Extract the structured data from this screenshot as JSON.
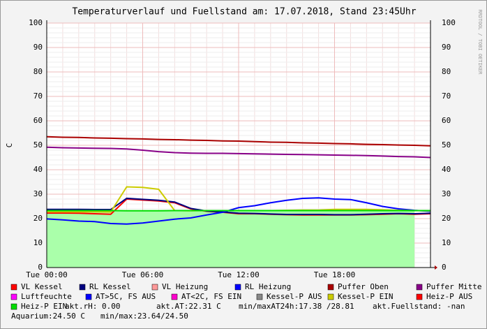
{
  "chart_data": {
    "type": "line",
    "title": "Temperaturverlauf und Fuellstand am: 17.07.2018, Stand 23:45Uhr",
    "y_label": "C",
    "side_text": "RRDTOOL / TOBI OETIKER",
    "x": [
      0,
      1,
      2,
      3,
      4,
      5,
      6,
      7,
      8,
      9,
      10,
      11,
      12,
      13,
      14,
      15,
      16,
      17,
      18,
      19,
      20,
      21,
      22,
      23,
      24
    ],
    "xlim": [
      0,
      24
    ],
    "xticks": [
      {
        "value": 0,
        "label": "Tue 00:00"
      },
      {
        "value": 6,
        "label": "Tue 06:00"
      },
      {
        "value": 12,
        "label": "Tue 12:00"
      },
      {
        "value": 18,
        "label": "Tue 18:00"
      }
    ],
    "ylim": [
      0,
      100
    ],
    "yticks": [
      0,
      10,
      20,
      30,
      40,
      50,
      60,
      70,
      80,
      90,
      100
    ],
    "grid": true,
    "fill_area": {
      "color": "#aaffaa",
      "values": [
        23,
        23,
        23,
        23,
        23,
        23,
        23,
        23,
        23,
        23,
        23,
        23,
        23,
        23,
        23,
        23,
        23,
        23,
        23,
        23,
        23,
        23,
        23,
        23,
        null
      ]
    },
    "series": [
      {
        "name": "VL Kessel",
        "color": "#ff0000",
        "values": [
          22.3,
          22.3,
          22.2,
          22.0,
          21.8,
          28.0,
          27.6,
          27.2,
          26.5,
          24.0,
          23.0,
          22.6,
          22.0,
          22.0,
          21.8,
          21.6,
          21.5,
          21.5,
          21.5,
          21.5,
          21.6,
          21.8,
          22.0,
          21.8,
          22.0
        ]
      },
      {
        "name": "RL Kessel",
        "color": "#000080",
        "values": [
          23.8,
          23.8,
          23.8,
          23.7,
          23.7,
          28.3,
          27.9,
          27.5,
          26.8,
          24.2,
          23.1,
          22.7,
          22.2,
          22.1,
          21.9,
          21.7,
          21.7,
          21.7,
          21.6,
          21.6,
          21.8,
          22.0,
          22.1,
          22.0,
          22.2
        ]
      },
      {
        "name": "VL Heizung",
        "color": "#ff9999"
      },
      {
        "name": "RL Heizung",
        "color": "#0000ff",
        "values": [
          19.9,
          19.5,
          19.0,
          18.8,
          18.0,
          17.8,
          18.2,
          19.0,
          19.8,
          20.3,
          21.5,
          22.6,
          24.5,
          25.3,
          26.5,
          27.5,
          28.3,
          28.5,
          28.0,
          27.8,
          26.5,
          25.0,
          24.0,
          23.4,
          23.0
        ]
      },
      {
        "name": "Puffer Oben",
        "color": "#aa0000",
        "values": [
          53.5,
          53.3,
          53.2,
          53.0,
          52.9,
          52.7,
          52.6,
          52.4,
          52.3,
          52.1,
          52.0,
          51.8,
          51.7,
          51.5,
          51.3,
          51.2,
          51.0,
          50.9,
          50.7,
          50.6,
          50.4,
          50.3,
          50.1,
          50.0,
          49.8
        ]
      },
      {
        "name": "Puffer Mitte",
        "color": "#880088",
        "values": [
          49.2,
          49.0,
          48.9,
          48.8,
          48.7,
          48.5,
          48.0,
          47.4,
          47.0,
          46.8,
          46.7,
          46.7,
          46.6,
          46.5,
          46.4,
          46.3,
          46.2,
          46.1,
          46.0,
          45.9,
          45.8,
          45.6,
          45.4,
          45.3,
          45.0
        ]
      },
      {
        "name": "Luftfeuchte",
        "color": "#ff00ff"
      },
      {
        "name": "AT>5C, FS AUS",
        "color": "#0000ff"
      },
      {
        "name": "AT<2C, FS EIN",
        "color": "#ff00cc"
      },
      {
        "name": "Kessel-P AUS",
        "color": "#888888"
      },
      {
        "name": "Kessel-P EIN",
        "color": "#cccc00",
        "values": [
          22.8,
          22.8,
          22.8,
          22.8,
          22.7,
          33.0,
          32.8,
          32.0,
          23.3,
          23.2,
          23.3,
          23.3,
          23.3,
          23.3,
          23.3,
          23.4,
          23.5,
          23.5,
          23.8,
          23.8,
          23.8,
          23.6,
          23.4,
          23.3,
          23.2
        ]
      },
      {
        "name": "Heiz-P AUS",
        "color": "#ff0000"
      },
      {
        "name": "Heiz-P EIN",
        "color": "#00dd00",
        "values": [
          23.3,
          23.3,
          23.3,
          23.3,
          23.3,
          23.2,
          23.2,
          23.2,
          23.3,
          23.3,
          23.3,
          23.3,
          23.3,
          23.3,
          23.3,
          23.3,
          23.3,
          23.3,
          23.3,
          23.3,
          23.3,
          23.3,
          23.3,
          23.3,
          23.3
        ]
      }
    ],
    "notes": [
      "akt.rH: 0.00",
      "akt.AT:22.31 C",
      "min/maxAT24h:17.38 /28.81",
      "akt.Fuellstand: -nan",
      "Aquarium:24.50 C",
      "min/max:23.64/24.50"
    ]
  }
}
